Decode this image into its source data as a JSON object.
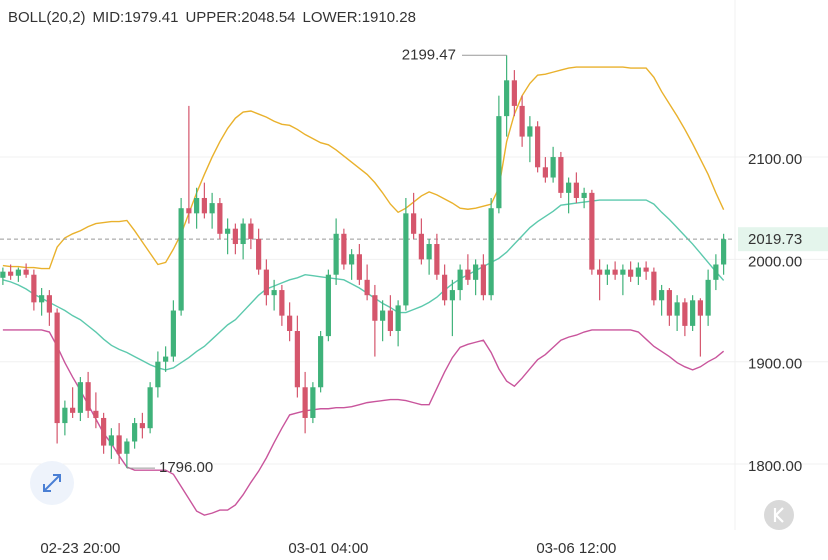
{
  "chart_data": {
    "type": "candlestick",
    "indicator": "BOLL(20,2)",
    "categories": [
      null,
      null,
      null,
      null,
      null,
      null,
      null,
      null,
      null,
      null,
      "02-23 20:00",
      null,
      null,
      null,
      null,
      null,
      null,
      null,
      null,
      null,
      null,
      null,
      null,
      null,
      null,
      null,
      null,
      null,
      null,
      null,
      null,
      null,
      null,
      null,
      null,
      null,
      null,
      null,
      null,
      null,
      null,
      null,
      "03-01 04:00",
      null,
      null,
      null,
      null,
      null,
      null,
      null,
      null,
      null,
      null,
      null,
      null,
      null,
      null,
      null,
      null,
      null,
      null,
      null,
      null,
      null,
      null,
      null,
      null,
      null,
      null,
      null,
      null,
      null,
      null,
      null,
      "03-06 12:00",
      null,
      null,
      null,
      null,
      null,
      null,
      null,
      null,
      null,
      null,
      null,
      null,
      null,
      null,
      null,
      null,
      null,
      null,
      null
    ],
    "open": [
      1982,
      1988,
      1984,
      1990,
      1985,
      1958,
      1965,
      1948,
      1840,
      1855,
      1850,
      1880,
      1852,
      1845,
      1818,
      1828,
      1810,
      1822,
      1840,
      1835,
      1875,
      1900,
      1905,
      1950,
      2050,
      2045,
      2060,
      2045,
      2055,
      2025,
      2030,
      2015,
      2035,
      2020,
      1990,
      1965,
      1970,
      1945,
      1930,
      1875,
      1845,
      1875,
      1925,
      1985,
      2025,
      1995,
      2005,
      1980,
      1965,
      1940,
      1950,
      1930,
      1955,
      2045,
      2025,
      2000,
      2015,
      1985,
      1960,
      1970,
      1990,
      1980,
      1995,
      1965,
      2050,
      2140,
      2175,
      2150,
      2120,
      2130,
      2090,
      2080,
      2100,
      2065,
      2075,
      2060,
      2065,
      1990,
      1985,
      1990,
      1985,
      1990,
      1983,
      1992,
      1988,
      1960,
      1970,
      1945,
      1958,
      1935,
      1960,
      1945,
      1980,
      1995
    ],
    "high": [
      1992,
      1995,
      1992,
      1996,
      1990,
      1972,
      1970,
      1952,
      1862,
      1875,
      1885,
      1890,
      1870,
      1850,
      1835,
      1840,
      1825,
      1845,
      1850,
      1880,
      1910,
      1915,
      1960,
      2060,
      2150,
      2070,
      2075,
      2065,
      2060,
      2040,
      2035,
      2040,
      2040,
      2030,
      2000,
      1980,
      1975,
      1958,
      1945,
      1890,
      1880,
      1930,
      1990,
      2040,
      2030,
      2010,
      2015,
      1995,
      1975,
      1960,
      1965,
      1960,
      2060,
      2065,
      2040,
      2020,
      2025,
      1995,
      1980,
      1995,
      2005,
      2000,
      2005,
      2060,
      2160,
      2199.47,
      2185,
      2160,
      2140,
      2135,
      2100,
      2110,
      2105,
      2080,
      2085,
      2070,
      2068,
      2000,
      1995,
      1998,
      1995,
      1998,
      1997,
      1998,
      1992,
      1975,
      1972,
      1965,
      1962,
      1965,
      1962,
      1990,
      2005,
      2025
    ],
    "low": [
      1975,
      1980,
      1978,
      1982,
      1950,
      1945,
      1935,
      1820,
      1828,
      1845,
      1842,
      1845,
      1835,
      1810,
      1805,
      1800,
      1796,
      1815,
      1825,
      1830,
      1865,
      1890,
      1900,
      1945,
      2035,
      2030,
      2040,
      2030,
      2020,
      2005,
      2005,
      2000,
      2010,
      1985,
      1955,
      1950,
      1935,
      1920,
      1865,
      1830,
      1840,
      1870,
      1920,
      1975,
      1990,
      1980,
      1975,
      1960,
      1905,
      1920,
      1925,
      1915,
      1950,
      2020,
      1995,
      1985,
      1980,
      1955,
      1925,
      1960,
      1975,
      1965,
      1960,
      1960,
      2045,
      2120,
      2140,
      2110,
      2095,
      2085,
      2075,
      2075,
      2060,
      2045,
      2055,
      2050,
      1985,
      1960,
      1975,
      1980,
      1965,
      1978,
      1975,
      1980,
      1955,
      1945,
      1935,
      1930,
      1925,
      1930,
      1905,
      1935,
      1970,
      1985
    ],
    "close": [
      1988,
      1984,
      1990,
      1985,
      1958,
      1965,
      1948,
      1840,
      1855,
      1850,
      1880,
      1852,
      1845,
      1818,
      1828,
      1810,
      1822,
      1840,
      1835,
      1875,
      1900,
      1905,
      1950,
      2050,
      2045,
      2060,
      2045,
      2055,
      2025,
      2030,
      2015,
      2035,
      2020,
      1990,
      1965,
      1970,
      1945,
      1930,
      1875,
      1845,
      1875,
      1925,
      1985,
      2025,
      1995,
      2005,
      1980,
      1965,
      1940,
      1950,
      1930,
      1955,
      2045,
      2025,
      2000,
      2015,
      1985,
      1960,
      1970,
      1990,
      1980,
      1995,
      1965,
      2050,
      2140,
      2175,
      2150,
      2120,
      2130,
      2090,
      2080,
      2100,
      2065,
      2075,
      2060,
      2065,
      1990,
      1985,
      1990,
      1985,
      1990,
      1983,
      1992,
      1988,
      1960,
      1970,
      1945,
      1958,
      1935,
      1960,
      1945,
      1980,
      1995,
      2019.73
    ],
    "up_color": "#3fb27a",
    "down_color": "#d5566c",
    "series": [
      {
        "name": "MID:1979.41",
        "color": "#5cc9ad",
        "values": [
          1980,
          1978,
          1975,
          1971,
          1966,
          1962,
          1958,
          1954,
          1950,
          1945,
          1941,
          1935,
          1929,
          1922,
          1916,
          1912,
          1909,
          1905,
          1901,
          1897,
          1894,
          1892,
          1894,
          1899,
          1904,
          1910,
          1915,
          1922,
          1929,
          1936,
          1941,
          1949,
          1957,
          1965,
          1971,
          1974,
          1977,
          1980,
          1982,
          1985,
          1984,
          1983,
          1982,
          1981,
          1980,
          1976,
          1972,
          1967,
          1962,
          1957,
          1953,
          1948,
          1948,
          1951,
          1954,
          1958,
          1963,
          1970,
          1976,
          1981,
          1985,
          1989,
          1993,
          1997,
          2001,
          2007,
          2015,
          2023,
          2031,
          2037,
          2042,
          2047,
          2053,
          2054,
          2055,
          2056,
          2057,
          2058,
          2058,
          2058,
          2058,
          2058,
          2058,
          2058,
          2054,
          2046,
          2039,
          2031,
          2023,
          2015,
          2006,
          1997,
          1988,
          1979.41
        ]
      },
      {
        "name": "UPPER:2048.54",
        "color": "#e9b12c",
        "values": [
          1994,
          1993,
          1993,
          1992,
          1992,
          1991,
          1991,
          2012,
          2021,
          2025,
          2028,
          2032,
          2035,
          2036,
          2037,
          2037,
          2038,
          2028,
          2017,
          2006,
          1995,
          1997,
          2010,
          2025,
          2045,
          2065,
          2083,
          2100,
          2115,
          2128,
          2138,
          2144,
          2145,
          2142,
          2139,
          2135,
          2132,
          2131,
          2127,
          2122,
          2118,
          2114,
          2112,
          2107,
          2101,
          2095,
          2089,
          2083,
          2075,
          2065,
          2054,
          2046,
          2050,
          2056,
          2062,
          2066,
          2063,
          2059,
          2055,
          2050,
          2049,
          2050,
          2052,
          2054,
          2070,
          2115,
          2142,
          2160,
          2172,
          2180,
          2181,
          2183,
          2185,
          2187,
          2188,
          2188,
          2188,
          2188,
          2188,
          2188,
          2188,
          2187,
          2187,
          2187,
          2178,
          2164,
          2152,
          2140,
          2127,
          2113,
          2098,
          2083,
          2065,
          2048.54
        ]
      },
      {
        "name": "LOWER:1910.28",
        "color": "#c9559c",
        "values": [
          1931,
          1931,
          1931,
          1931,
          1931,
          1931,
          1929,
          1915,
          1899,
          1885,
          1872,
          1858,
          1844,
          1830,
          1820,
          1808,
          1797,
          1794,
          1794,
          1794,
          1794,
          1794,
          1790,
          1778,
          1766,
          1754,
          1750,
          1752,
          1755,
          1755,
          1760,
          1770,
          1782,
          1793,
          1806,
          1821,
          1835,
          1848,
          1850,
          1852,
          1853,
          1854,
          1854,
          1855,
          1855,
          1856,
          1858,
          1860,
          1861,
          1862,
          1863,
          1863,
          1862,
          1860,
          1858,
          1858,
          1874,
          1890,
          1904,
          1914,
          1917,
          1919,
          1921,
          1909,
          1893,
          1881,
          1876,
          1884,
          1893,
          1902,
          1907,
          1914,
          1921,
          1924,
          1926,
          1929,
          1931,
          1931,
          1931,
          1931,
          1931,
          1931,
          1929,
          1922,
          1915,
          1910,
          1905,
          1899,
          1895,
          1892,
          1895,
          1900,
          1904,
          1910.28
        ]
      }
    ],
    "ylim": [
      1735.5,
      2253.5
    ],
    "yticks": [
      {
        "value": 1800,
        "label": "1800.00"
      },
      {
        "value": 1900,
        "label": "1900.00"
      },
      {
        "value": 2000,
        "label": "2000.00"
      },
      {
        "value": 2100,
        "label": "2100.00"
      }
    ],
    "grid": true,
    "last_price": 2019.73,
    "max_label": 2199.47,
    "min_label": {
      "value": 1796,
      "label": "1796.00"
    }
  }
}
